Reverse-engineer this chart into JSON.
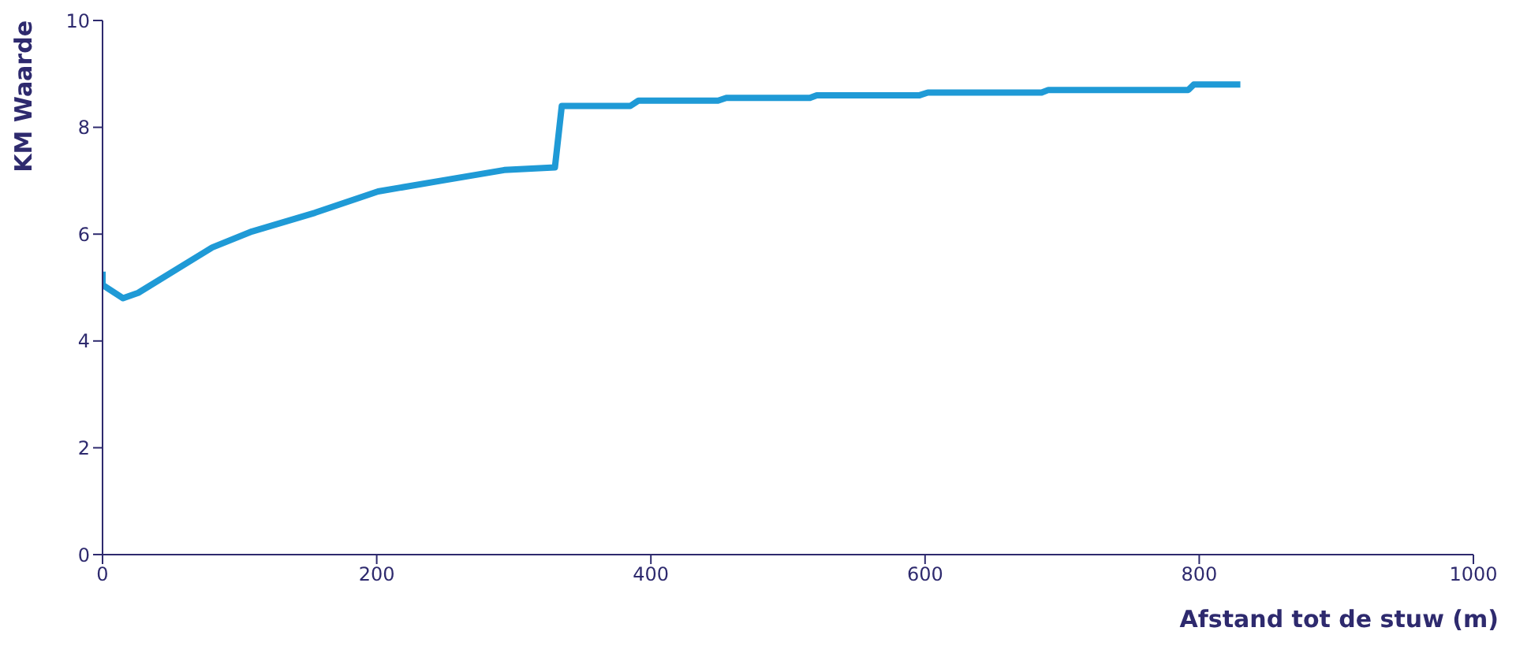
{
  "chart_data": {
    "type": "line",
    "xlabel": "Afstand tot de stuw (m)",
    "ylabel": "KM Waarde",
    "xlim": [
      0,
      1000
    ],
    "xticks": [
      0,
      200,
      400,
      600,
      800,
      1000
    ],
    "ylim": [
      0,
      10
    ],
    "yticks": [
      0,
      2,
      4,
      6,
      8,
      10
    ],
    "marker": "none",
    "line_style": "solid",
    "series": [
      {
        "color": "#1f9ad6",
        "x": [
          0,
          0,
          15,
          26,
          80,
          109,
          155,
          201,
          247,
          293,
          330,
          335,
          385,
          391,
          449,
          455,
          516,
          521,
          596,
          602,
          685,
          690,
          792,
          796,
          830
        ],
        "values": [
          5.3,
          5.05,
          4.8,
          4.9,
          5.75,
          6.05,
          6.4,
          6.8,
          7.0,
          7.2,
          7.25,
          8.4,
          8.4,
          8.5,
          8.5,
          8.55,
          8.55,
          8.6,
          8.6,
          8.65,
          8.65,
          8.7,
          8.7,
          8.8,
          8.8
        ]
      }
    ]
  }
}
